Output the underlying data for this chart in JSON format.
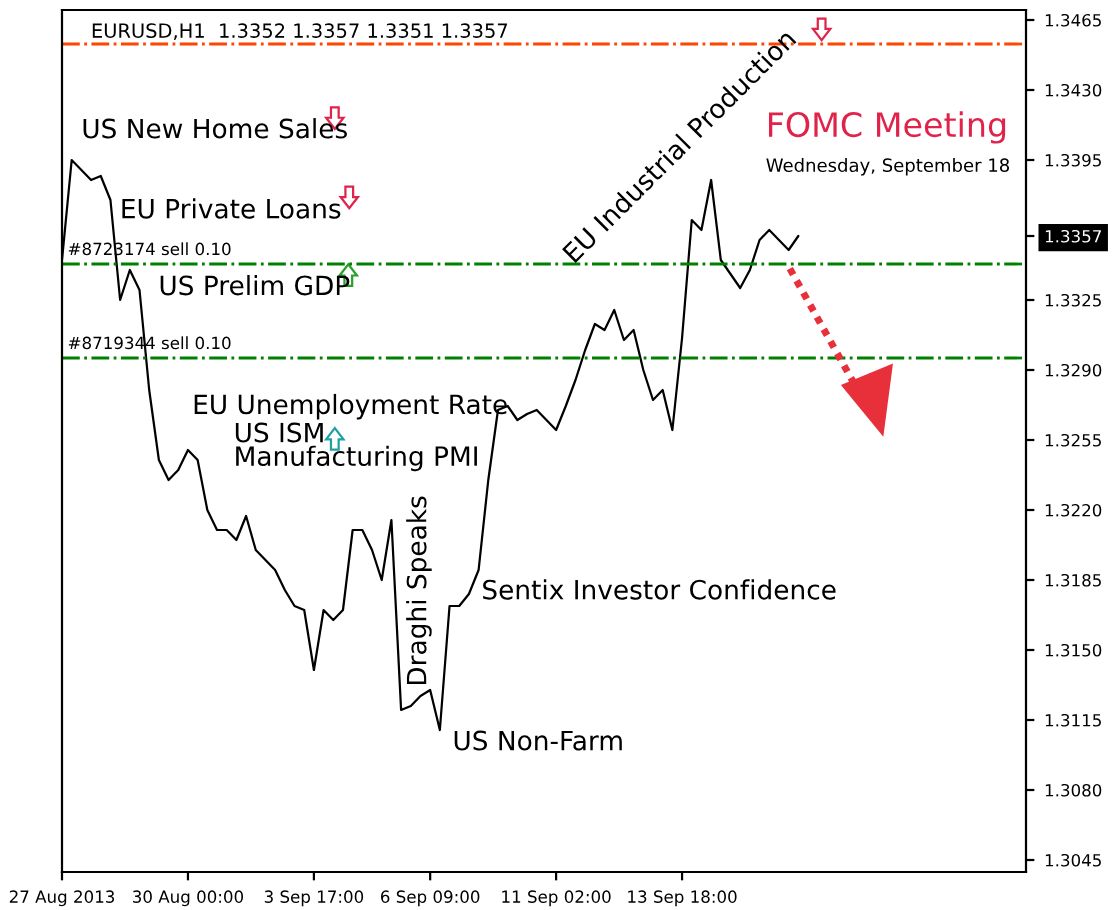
{
  "chart_data": {
    "type": "line",
    "title": "EURUSD,H1  1.3352 1.3357 1.3351 1.3357",
    "categories": [
      "27 Aug 2013",
      null,
      null,
      null,
      null,
      null,
      null,
      null,
      null,
      null,
      null,
      null,
      null,
      "30 Aug 00:00",
      null,
      null,
      null,
      null,
      null,
      null,
      null,
      null,
      null,
      null,
      null,
      null,
      "3 Sep 17:00",
      null,
      null,
      null,
      null,
      null,
      null,
      null,
      null,
      null,
      null,
      null,
      "6 Sep 09:00",
      null,
      null,
      null,
      null,
      null,
      null,
      null,
      null,
      null,
      null,
      null,
      null,
      "11 Sep 02:00",
      null,
      null,
      null,
      null,
      null,
      null,
      null,
      null,
      null,
      null,
      null,
      null,
      "13 Sep 18:00",
      null,
      null,
      null,
      null,
      null,
      null,
      null,
      null,
      null,
      null,
      null,
      null,
      null,
      null,
      null,
      null,
      null,
      null,
      null,
      null,
      null,
      null,
      null,
      null,
      null,
      null,
      null,
      null,
      null,
      null,
      null,
      null,
      null,
      null,
      null
    ],
    "series": [
      {
        "color": "#000000",
        "values": [
          1.3345,
          1.3395,
          1.339,
          1.3385,
          1.3387,
          1.3375,
          1.3325,
          1.334,
          1.333,
          1.328,
          1.3245,
          1.3235,
          1.324,
          1.325,
          1.3245,
          1.322,
          1.321,
          1.321,
          1.3205,
          1.3217,
          1.32,
          1.3195,
          1.319,
          1.318,
          1.3172,
          1.317,
          1.314,
          1.317,
          1.3165,
          1.317,
          1.321,
          1.321,
          1.32,
          1.3185,
          1.3215,
          1.312,
          1.3122,
          1.3127,
          1.313,
          1.311,
          1.3172,
          1.3172,
          1.3178,
          1.319,
          1.3235,
          1.327,
          1.3272,
          1.3265,
          1.3268,
          1.327,
          1.3265,
          1.326,
          1.3272,
          1.3285,
          1.33,
          1.3313,
          1.331,
          1.332,
          1.3305,
          1.331,
          1.329,
          1.3275,
          1.328,
          1.326,
          1.3306,
          1.3365,
          1.336,
          1.3385,
          1.3345,
          1.3338,
          1.3331,
          1.334,
          1.3355,
          1.336,
          1.3355,
          1.335,
          1.3357,
          null,
          null,
          null,
          null,
          null,
          null,
          null,
          null,
          null,
          null,
          null,
          null,
          null,
          null,
          null,
          null,
          null,
          null,
          null,
          null,
          null,
          null,
          null
        ]
      }
    ],
    "ylim": [
      1.3039,
      1.347
    ],
    "yticks": [
      {
        "value": 1.3045,
        "label": "1.3045"
      },
      {
        "value": 1.308,
        "label": "1.3080"
      },
      {
        "value": 1.3115,
        "label": "1.3115"
      },
      {
        "value": 1.315,
        "label": "1.3150"
      },
      {
        "value": 1.3185,
        "label": "1.3185"
      },
      {
        "value": 1.322,
        "label": "1.3220"
      },
      {
        "value": 1.3255,
        "label": "1.3255"
      },
      {
        "value": 1.329,
        "label": "1.3290"
      },
      {
        "value": 1.3325,
        "label": "1.3325"
      },
      {
        "value": 1.3357,
        "label": "1.3357"
      },
      {
        "value": 1.3395,
        "label": "1.3395"
      },
      {
        "value": 1.343,
        "label": "1.3430"
      },
      {
        "value": 1.3465,
        "label": "1.3465"
      }
    ],
    "ref_lines": [
      {
        "axis": "y",
        "value": 1.3453,
        "color": "#ff4500",
        "line_style": "dashdot"
      },
      {
        "axis": "y",
        "value": 1.3343,
        "label": "#8723174 sell 0.10",
        "color": "#008000",
        "line_style": "dashdot"
      },
      {
        "axis": "y",
        "value": 1.3296,
        "label": "#8719344 sell 0.10",
        "color": "#008000",
        "line_style": "dashdot"
      }
    ],
    "annotations": [
      "US New Home Sales",
      "EU Private Loans",
      "US Prelim GDP",
      "EU Unemployment Rate",
      "US ISM\nManufacturing PMI",
      "Draghi Speaks",
      "US Non-Farm",
      "Sentix Investor Confidence",
      "EU Industrial Production",
      "FOMC Meeting",
      "Wednesday, September 18"
    ],
    "grid": false,
    "legend": false,
    "line_style": "solid",
    "marker": "none"
  }
}
